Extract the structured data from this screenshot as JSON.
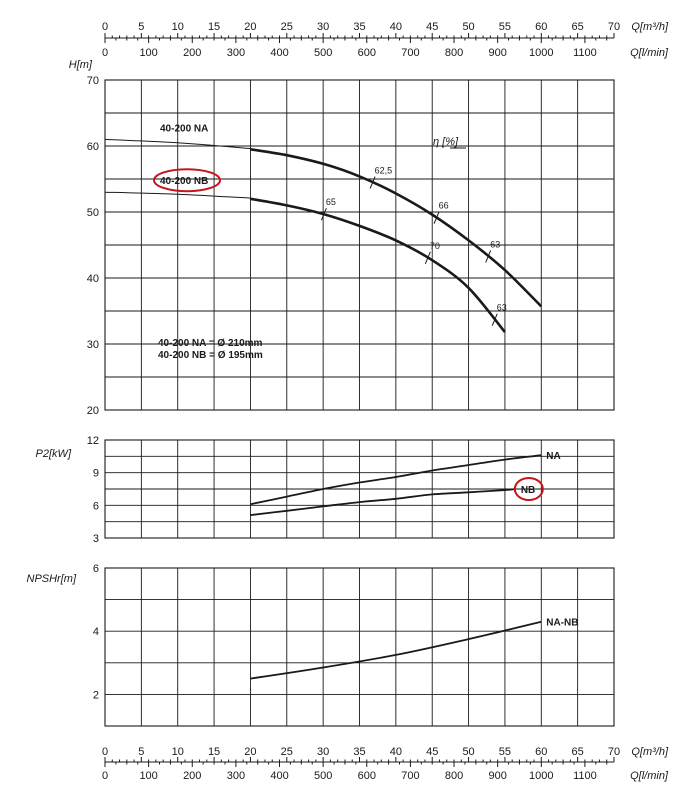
{
  "chart_data": [
    {
      "type": "line",
      "name_ref": "head",
      "ylabel": "H[m]",
      "ylim": [
        20,
        70
      ],
      "yticks": [
        20,
        30,
        40,
        50,
        60,
        70
      ],
      "xlim": [
        0,
        70
      ],
      "eta_label": "η [%]",
      "diameter_note": [
        "40-200 NA = Ø 210mm",
        "40-200 NB = Ø 195mm"
      ],
      "series": [
        {
          "name": "40-200 NA",
          "highlighted": false,
          "extension": [
            [
              0,
              61
            ],
            [
              10,
              60.5
            ],
            [
              20,
              59.6
            ]
          ],
          "points": [
            [
              20,
              59.5
            ],
            [
              25,
              58.6
            ],
            [
              30,
              57.3
            ],
            [
              35,
              55.4
            ],
            [
              40,
              52.8
            ],
            [
              45,
              49.6
            ],
            [
              50,
              45.7
            ],
            [
              55,
              41.2
            ],
            [
              60,
              35.7
            ]
          ],
          "efficiency": [
            {
              "x": 36.8,
              "eta": "62,5"
            },
            {
              "x": 45.6,
              "eta": "66"
            },
            {
              "x": 52.7,
              "eta": "63"
            }
          ]
        },
        {
          "name": "40-200 NB",
          "highlighted": true,
          "extension": [
            [
              0,
              53
            ],
            [
              10,
              52.7
            ],
            [
              20,
              52.1
            ]
          ],
          "points": [
            [
              20,
              52
            ],
            [
              25,
              51
            ],
            [
              30,
              49.7
            ],
            [
              35,
              47.9
            ],
            [
              40,
              45.7
            ],
            [
              45,
              42.7
            ],
            [
              50,
              38.5
            ],
            [
              55,
              31.8
            ]
          ],
          "efficiency": [
            {
              "x": 30.1,
              "eta": "65"
            },
            {
              "x": 44.4,
              "eta": "70"
            },
            {
              "x": 53.6,
              "eta": "63"
            }
          ]
        }
      ]
    },
    {
      "type": "line",
      "name_ref": "power",
      "ylabel": "P2[kW]",
      "ylim": [
        3,
        12
      ],
      "yticks": [
        3,
        6,
        9,
        12
      ],
      "xlim": [
        0,
        70
      ],
      "series": [
        {
          "name": "NA",
          "highlighted": false,
          "points": [
            [
              20,
              6.1
            ],
            [
              25,
              6.8
            ],
            [
              30,
              7.5
            ],
            [
              35,
              8.1
            ],
            [
              40,
              8.6
            ],
            [
              45,
              9.2
            ],
            [
              50,
              9.7
            ],
            [
              55,
              10.2
            ],
            [
              60,
              10.6
            ]
          ]
        },
        {
          "name": "NB",
          "highlighted": true,
          "points": [
            [
              20,
              5.1
            ],
            [
              25,
              5.5
            ],
            [
              30,
              5.9
            ],
            [
              35,
              6.3
            ],
            [
              40,
              6.6
            ],
            [
              45,
              7
            ],
            [
              50,
              7.2
            ],
            [
              55,
              7.4
            ],
            [
              56.5,
              7.5
            ]
          ]
        }
      ]
    },
    {
      "type": "line",
      "name_ref": "npsh",
      "ylabel": "NPSHr[m]",
      "ylim": [
        1,
        6
      ],
      "yticks": [
        2,
        4,
        6
      ],
      "xlim": [
        0,
        70
      ],
      "series": [
        {
          "name": "NA-NB",
          "highlighted": false,
          "points": [
            [
              20,
              2.5
            ],
            [
              30,
              2.85
            ],
            [
              40,
              3.25
            ],
            [
              50,
              3.75
            ],
            [
              60,
              4.3
            ]
          ]
        }
      ]
    }
  ],
  "axes": {
    "q_m3h": {
      "label": "Q[m³/h]",
      "ticks": [
        "0",
        "5",
        "10",
        "15",
        "20",
        "25",
        "30",
        "35",
        "40",
        "45",
        "50",
        "55",
        "60",
        "65",
        "70"
      ]
    },
    "q_lmin": {
      "label": "Q[l/min]",
      "ticks": [
        "0",
        "100",
        "200",
        "300",
        "400",
        "500",
        "600",
        "700",
        "800",
        "900",
        "1000",
        "1100"
      ]
    }
  },
  "colors": {
    "ink": "#1a1a1a",
    "highlight": "#c4161c"
  }
}
